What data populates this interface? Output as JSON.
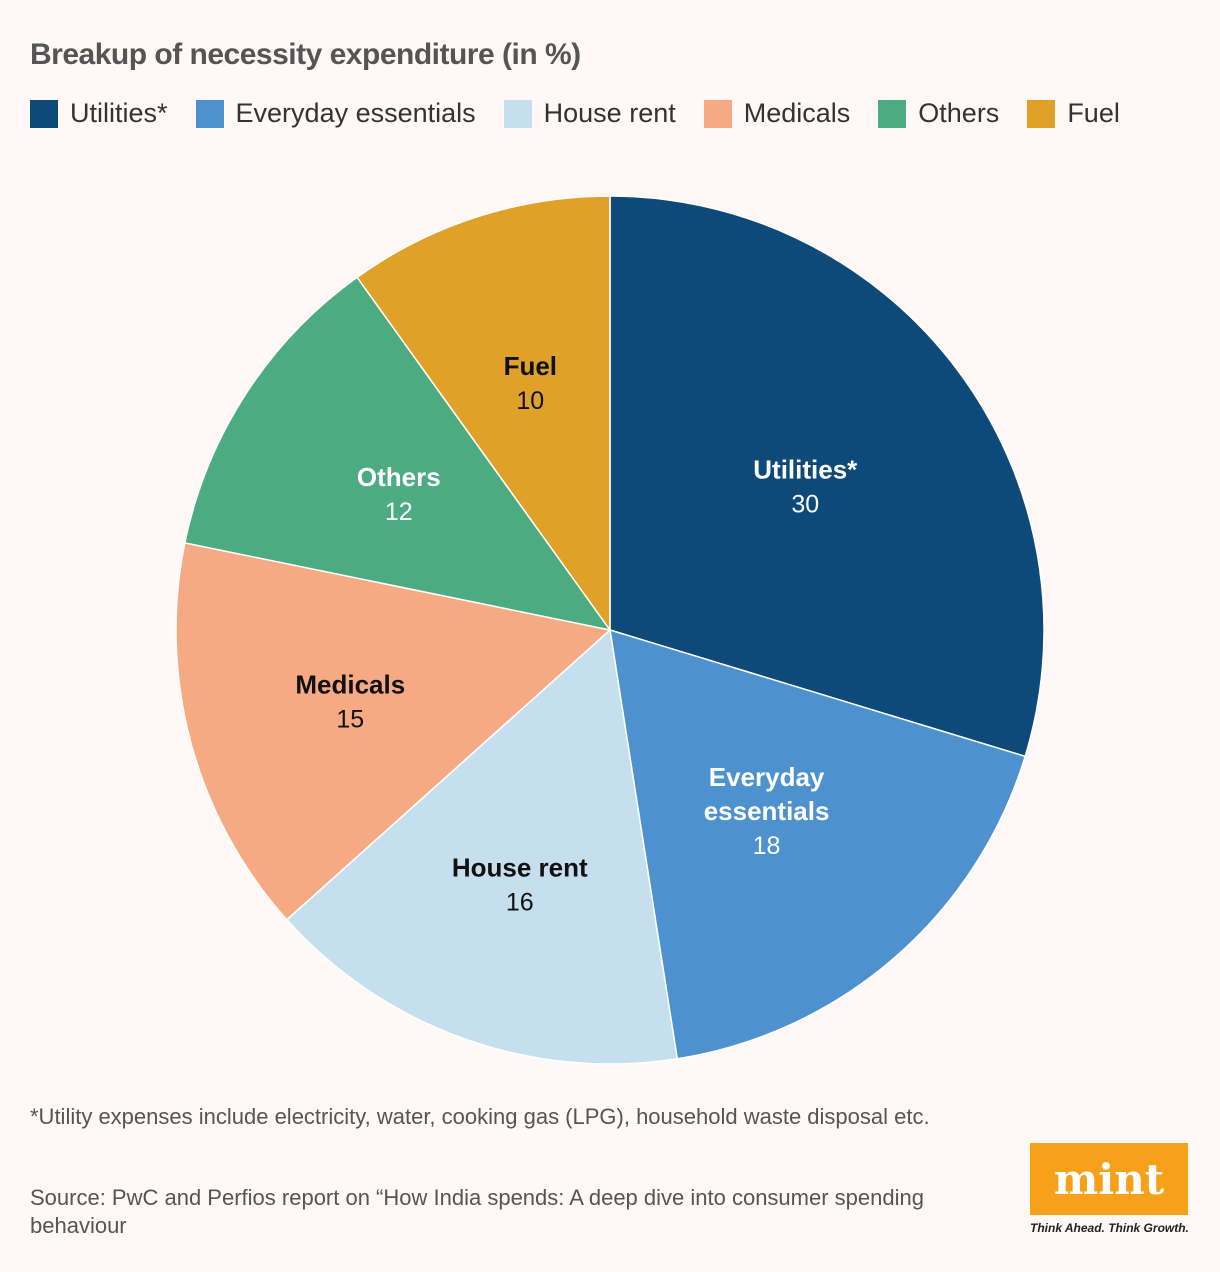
{
  "chart_data": {
    "type": "pie",
    "title": "Breakup of necessity expenditure (in %)",
    "categories": [
      "Utilities*",
      "Everyday essentials",
      "House rent",
      "Medicals",
      "Others",
      "Fuel"
    ],
    "slice_labels": [
      "Utilities*",
      "Everyday essentials",
      "House rent",
      "Medicals",
      "Others",
      "Fuel"
    ],
    "values": [
      30,
      18,
      16,
      15,
      12,
      10
    ],
    "colors": [
      "#0d4a7a",
      "#4d92cf",
      "#c5dfef",
      "#f6aa84",
      "#4cab80",
      "#dfa127"
    ],
    "label_colors": [
      "#ffffff",
      "#ffffff",
      "#111111",
      "#111111",
      "#ffffff",
      "#111111"
    ],
    "legend": {
      "position": "top"
    },
    "footnote": "*Utility expenses include electricity, water, cooking gas (LPG), household waste disposal etc.",
    "source": "Source: PwC and Perfios report on “How India spends: A deep dive into consumer spending behaviour"
  },
  "brand": {
    "logo_text": "mint",
    "tagline": "Think Ahead. Think Growth.",
    "logo_color": "#f7a11a"
  }
}
